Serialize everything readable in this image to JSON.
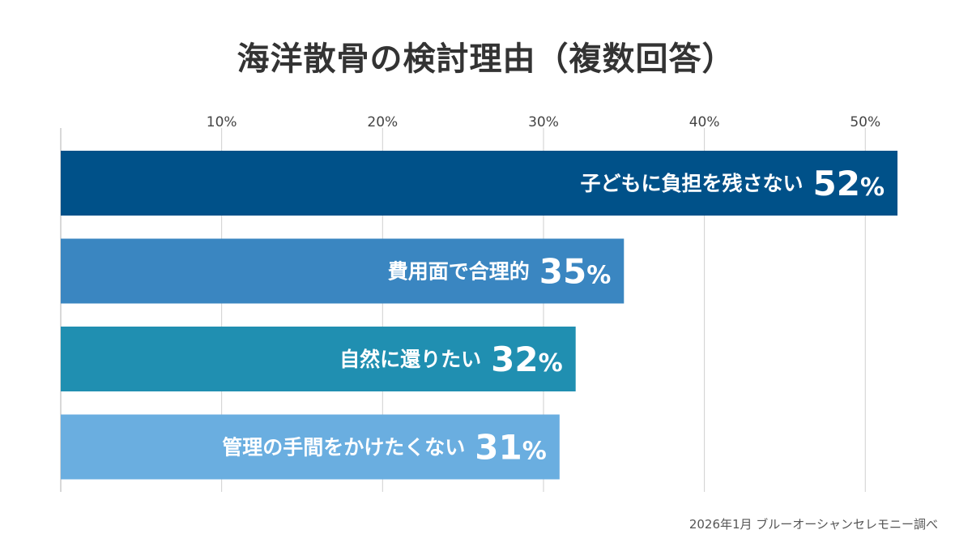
{
  "chart_data": {
    "type": "bar",
    "orientation": "horizontal",
    "title": "海洋散骨の検討理由（複数回答）",
    "categories": [
      "子どもに負担を残さない",
      "費用面で合理的",
      "自然に還りたい",
      "管理の手間をかけたくない"
    ],
    "values": [
      52,
      35,
      32,
      31
    ],
    "value_labels": [
      "52",
      "35",
      "32",
      "31"
    ],
    "value_suffix": "%",
    "xlim": [
      0,
      52
    ],
    "xticks": [
      10,
      20,
      30,
      40,
      50
    ],
    "xtick_labels": [
      "10%",
      "20%",
      "30%",
      "40%",
      "50%"
    ],
    "axis_position": "top",
    "grid": true,
    "legend": "none",
    "colors": [
      "#005189",
      "#3a86c1",
      "#208fb1",
      "#6aaee0"
    ]
  },
  "source_note": "2026年1月 ブルーオーシャンセレモニー調べ"
}
